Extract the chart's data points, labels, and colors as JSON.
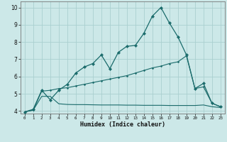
{
  "xlabel": "Humidex (Indice chaleur)",
  "bg_color": "#cce8e8",
  "line_color": "#1a6b6b",
  "grid_color": "#aacfcf",
  "xlim": [
    -0.5,
    23.5
  ],
  "ylim": [
    3.85,
    10.35
  ],
  "xticks": [
    0,
    1,
    2,
    3,
    4,
    5,
    6,
    7,
    8,
    9,
    10,
    11,
    12,
    13,
    14,
    15,
    16,
    17,
    18,
    19,
    20,
    21,
    22,
    23
  ],
  "yticks": [
    4,
    5,
    6,
    7,
    8,
    9,
    10
  ],
  "line1_x": [
    0,
    1,
    2,
    3,
    4,
    5,
    6,
    7,
    8,
    9,
    10,
    11,
    12,
    13,
    14,
    15,
    16,
    17,
    18,
    19,
    20,
    21,
    22,
    23
  ],
  "line1_y": [
    3.95,
    4.1,
    5.2,
    4.65,
    5.2,
    5.55,
    6.2,
    6.55,
    6.75,
    7.25,
    6.45,
    7.4,
    7.75,
    7.8,
    8.5,
    9.5,
    10.0,
    9.1,
    8.3,
    7.25,
    5.3,
    5.6,
    4.45,
    4.25
  ],
  "line2_x": [
    0,
    1,
    2,
    3,
    4,
    5,
    6,
    7,
    8,
    9,
    10,
    11,
    12,
    13,
    14,
    15,
    16,
    17,
    18,
    19,
    20,
    21,
    22,
    23
  ],
  "line2_y": [
    3.95,
    4.05,
    5.15,
    5.2,
    5.3,
    5.35,
    5.45,
    5.55,
    5.65,
    5.75,
    5.85,
    5.95,
    6.05,
    6.2,
    6.35,
    6.5,
    6.6,
    6.75,
    6.85,
    7.2,
    5.3,
    5.4,
    4.45,
    4.25
  ],
  "line3_x": [
    0,
    1,
    2,
    3,
    4,
    5,
    6,
    7,
    8,
    9,
    10,
    11,
    12,
    13,
    14,
    15,
    16,
    17,
    18,
    19,
    20,
    21,
    22,
    23
  ],
  "line3_y": [
    3.95,
    4.05,
    4.85,
    4.85,
    4.42,
    4.38,
    4.37,
    4.37,
    4.36,
    4.35,
    4.35,
    4.35,
    4.34,
    4.34,
    4.33,
    4.33,
    4.33,
    4.32,
    4.32,
    4.32,
    4.32,
    4.35,
    4.25,
    4.2
  ]
}
